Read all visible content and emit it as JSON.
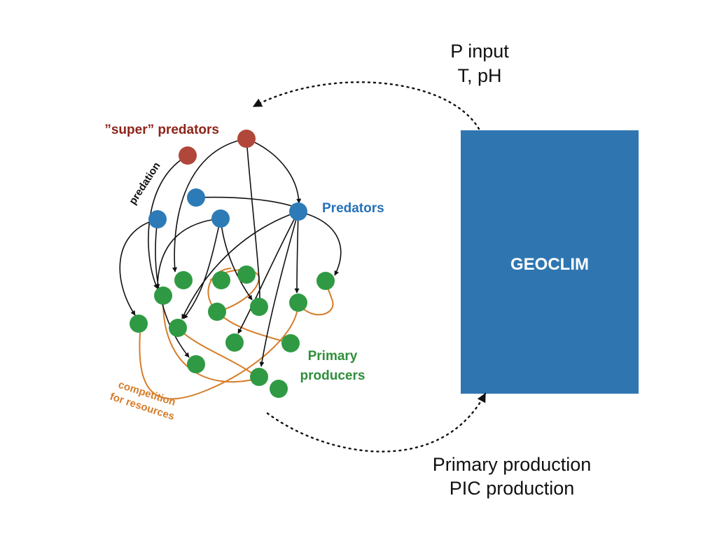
{
  "labels": {
    "top_line1": "P input",
    "top_line2": "T, pH",
    "bottom_line1": "Primary production",
    "bottom_line2": "PIC production",
    "box": "GEOCLIM",
    "super_predators": "”super” predators",
    "predators": "Predators",
    "primary_line1": "Primary",
    "primary_line2": "producers",
    "predation": "predation",
    "competition_line1": "competition",
    "competition_line2": "for resources"
  },
  "colors": {
    "box": "#2f76b1",
    "super_predator": "#b0473a",
    "predator": "#2d7bb6",
    "producer": "#2f9a43",
    "super_label": "#8e2419",
    "predator_label": "#2672b9",
    "producer_label": "#2f8f3a",
    "competition": "#d57d2a",
    "arrow": "#111111"
  }
}
